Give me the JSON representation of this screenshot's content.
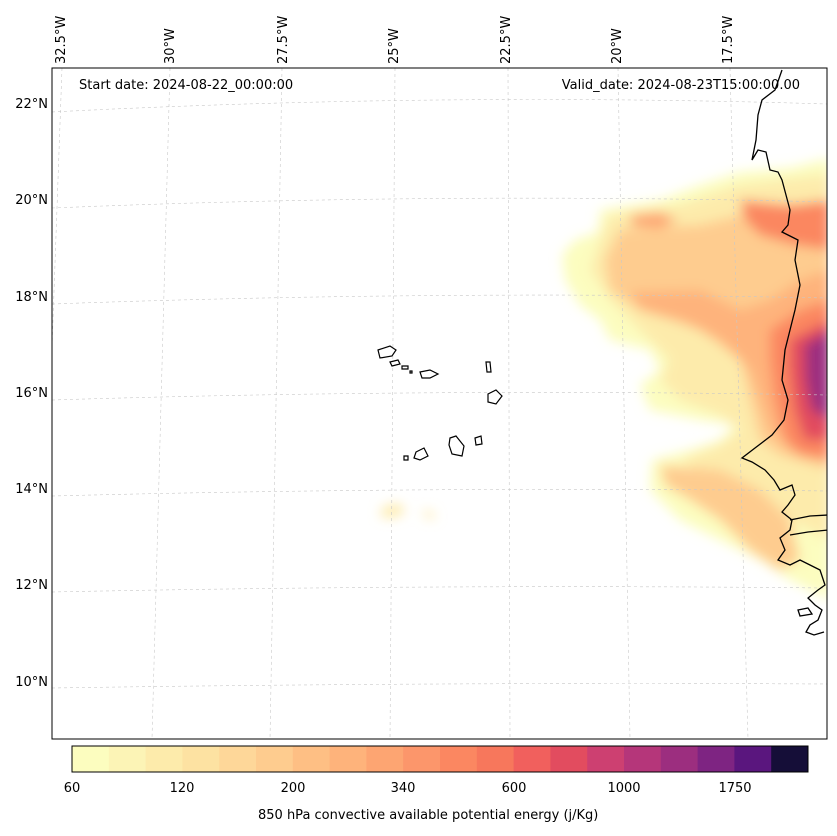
{
  "header": {
    "start_date": "Start date: 2024-08-22_00:00:00",
    "valid_date": "Valid_date: 2024-08-23T15:00:00.00"
  },
  "axes": {
    "longitude_labels": [
      "32.5°W",
      "30°W",
      "27.5°W",
      "25°W",
      "22.5°W",
      "20°W",
      "17.5°W"
    ],
    "latitude_labels": [
      "22°N",
      "20°N",
      "18°N",
      "16°N",
      "14°N",
      "12°N",
      "10°N"
    ],
    "gridlines": true
  },
  "colorbar": {
    "tick_labels": [
      "60",
      "120",
      "200",
      "340",
      "600",
      "1000",
      "1750"
    ],
    "label": "850 hPa convective available potential energy (j/Kg)",
    "levels": [
      60,
      80,
      100,
      120,
      140,
      160,
      200,
      240,
      280,
      340,
      400,
      480,
      600,
      700,
      850,
      1000,
      1200,
      1450,
      1750,
      2100
    ],
    "colors": [
      "#fcfdbf",
      "#fcf4b6",
      "#fdebab",
      "#fde2a2",
      "#fed799",
      "#fecc8f",
      "#febf84",
      "#feb37b",
      "#fda572",
      "#fc966b",
      "#fb8761",
      "#f7775c",
      "#f1605d",
      "#e24c5f",
      "#cd4071",
      "#b5367a",
      "#9c2e7f",
      "#7e2482",
      "#5a167e",
      "#150e38"
    ]
  },
  "overlays": [
    "coastlines",
    "cape-verde-islands"
  ]
}
